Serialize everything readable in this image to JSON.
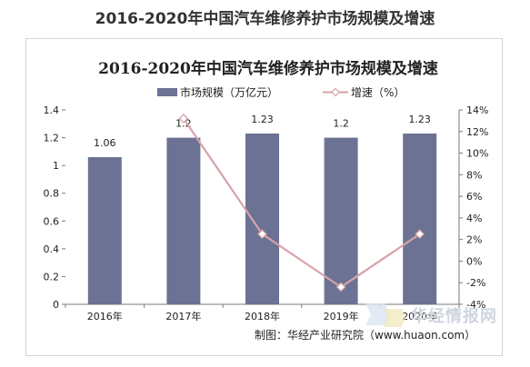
{
  "header": {
    "title": "2016-2020年中国汽车维修养护市场规模及增速"
  },
  "credit": {
    "text": "制图：华经产业研究院（www.huaon.com）"
  },
  "watermark": {
    "text": "华经情报网"
  },
  "colors": {
    "bar": "#6b7294",
    "line": "#d7a3a8",
    "marker_fill": "#ffffff",
    "axis": "#7a7a7a",
    "text": "#222222"
  },
  "chart_data": {
    "type": "bar",
    "title": "2016-2020年中国汽车维修养护市场规模及增速",
    "categories": [
      "2016年",
      "2017年",
      "2018年",
      "2019年",
      "2020年"
    ],
    "series": [
      {
        "name": "市场规模（万亿元）",
        "type": "bar",
        "axis": "left",
        "values": [
          1.06,
          1.2,
          1.23,
          1.2,
          1.23
        ],
        "labels": [
          "1.06",
          "1.2",
          "1.23",
          "1.2",
          "1.23"
        ]
      },
      {
        "name": "增速（%）",
        "type": "line",
        "axis": "right",
        "values": [
          null,
          13.2,
          2.5,
          -2.4,
          2.5
        ]
      }
    ],
    "y_left": {
      "ylim": [
        0,
        1.4
      ],
      "ticks": [
        0,
        0.2,
        0.4,
        0.6,
        0.8,
        1,
        1.2,
        1.4
      ],
      "tick_labels": [
        "0",
        "0.2",
        "0.4",
        "0.6",
        "0.8",
        "1",
        "1.2",
        "1.4"
      ]
    },
    "y_right": {
      "ylim": [
        -4,
        14
      ],
      "ticks": [
        -4,
        -2,
        0,
        2,
        4,
        6,
        8,
        10,
        12,
        14
      ],
      "tick_labels": [
        "-4%",
        "-2%",
        "0%",
        "2%",
        "4%",
        "6%",
        "8%",
        "10%",
        "12%",
        "14%"
      ]
    },
    "legend_position": "top-center",
    "grid": false
  }
}
